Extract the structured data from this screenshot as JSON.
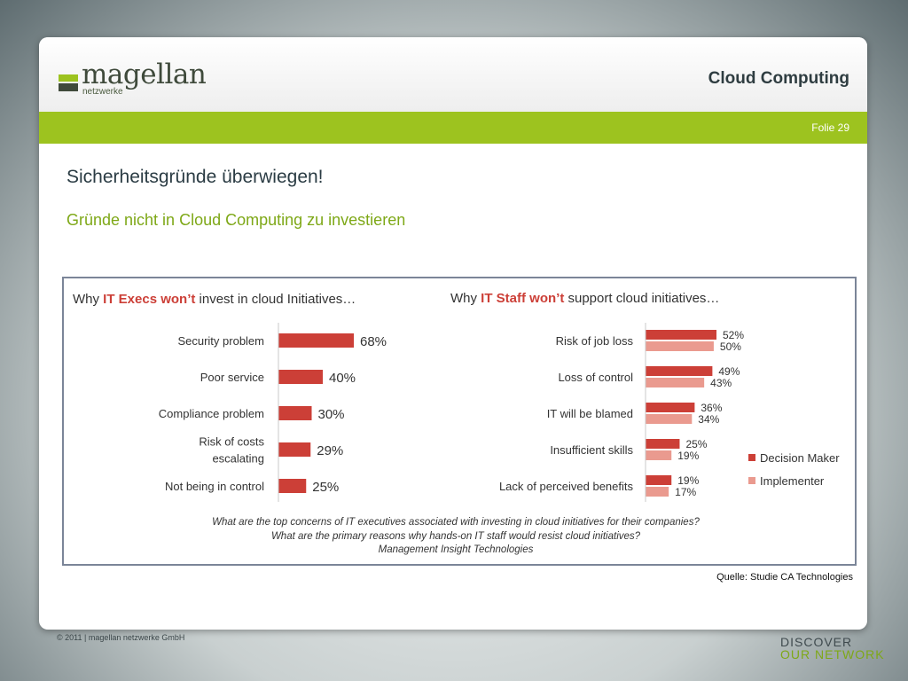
{
  "header": {
    "logo_text": "magellan",
    "logo_sub": "netzwerke",
    "title": "Cloud Computing",
    "slide_no": "Folie 29"
  },
  "content": {
    "title": "Sicherheitsgründe überwiegen!",
    "subtitle": "Gründe nicht in Cloud Computing zu investieren"
  },
  "footer": {
    "source": "Quelle: Studie CA Technologies",
    "copyright": "© 2011 | magellan netzwerke GmbH",
    "tagline_1": "DISCOVER",
    "tagline_2": "OUR NETWORK"
  },
  "colors": {
    "decision_maker": "#cc3f37",
    "implementer": "#ea9a8f",
    "accent_green": "#9dc31f"
  },
  "chart_data": [
    {
      "type": "bar",
      "orientation": "horizontal",
      "title_parts": [
        "Why ",
        "IT Execs won’t",
        " invest in cloud Initiatives…"
      ],
      "categories": [
        [
          "Security problem"
        ],
        [
          "Poor service"
        ],
        [
          "Compliance problem"
        ],
        [
          "Risk of costs",
          "escalating"
        ],
        [
          "Not being in control"
        ]
      ],
      "values": [
        68,
        40,
        30,
        29,
        25
      ],
      "value_labels": [
        "68%",
        "40%",
        "30%",
        "29%",
        "25%"
      ],
      "unit": "%"
    },
    {
      "type": "bar",
      "orientation": "horizontal",
      "title_parts": [
        "Why ",
        "IT Staff won’t",
        " support cloud initiatives…"
      ],
      "categories": [
        "Risk of job loss",
        "Loss of control",
        "IT will be blamed",
        "Insufficient skills",
        "Lack of perceived benefits"
      ],
      "series": [
        {
          "name": "Decision Maker",
          "values": [
            52,
            49,
            36,
            25,
            19
          ],
          "value_labels": [
            "52%",
            "49%",
            "36%",
            "25%",
            "19%"
          ]
        },
        {
          "name": "Implementer",
          "values": [
            50,
            43,
            34,
            19,
            17
          ],
          "value_labels": [
            "50%",
            "43%",
            "34%",
            "19%",
            "17%"
          ]
        }
      ],
      "legend_position": "right",
      "unit": "%"
    }
  ],
  "caption_lines": [
    "What are the top concerns of IT executives associated with investing in cloud initiatives for their companies?",
    "What are the primary reasons why hands-on IT staff would resist cloud initiatives?",
    "Management Insight Technologies"
  ]
}
